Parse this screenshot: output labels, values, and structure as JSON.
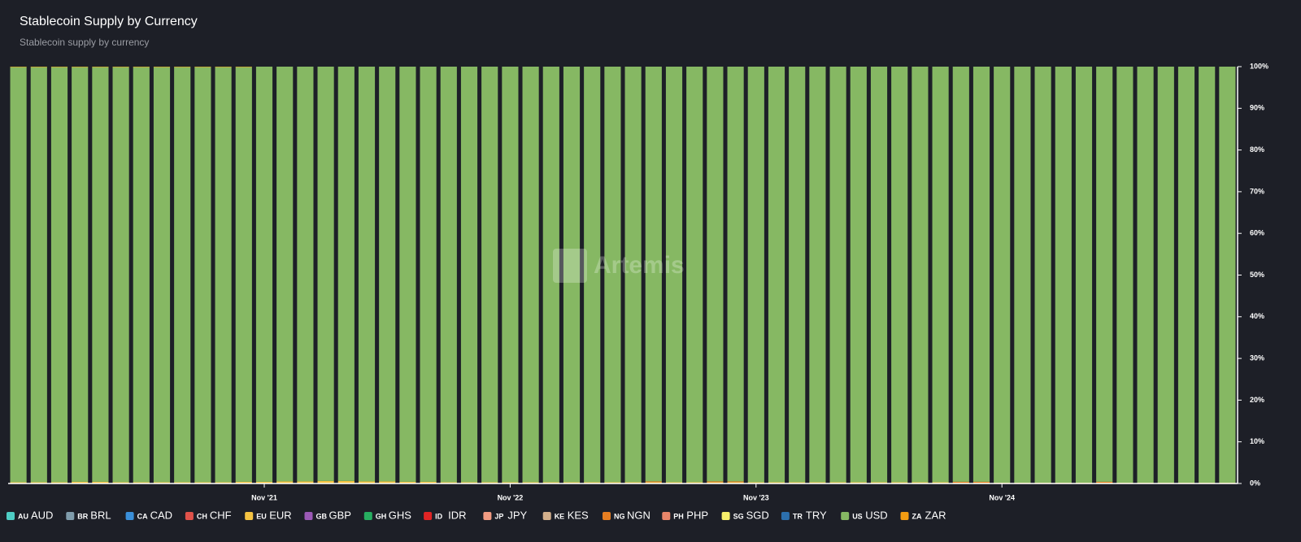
{
  "chart_data": {
    "type": "stacked_bar",
    "title": "Stablecoin Supply by Currency",
    "subtitle": "Stablecoin supply by currency",
    "watermark": "Artemis",
    "categories": [
      null,
      null,
      null,
      null,
      null,
      null,
      null,
      null,
      null,
      null,
      null,
      null,
      "Nov '21",
      null,
      null,
      null,
      null,
      null,
      null,
      null,
      null,
      null,
      null,
      null,
      "Nov '22",
      null,
      null,
      null,
      null,
      null,
      null,
      null,
      null,
      null,
      null,
      null,
      "Nov '23",
      null,
      null,
      null,
      null,
      null,
      null,
      null,
      null,
      null,
      null,
      null,
      "Nov '24",
      null,
      null,
      null,
      null,
      null,
      null,
      null,
      null,
      null,
      null,
      null
    ],
    "ylim": [
      0,
      100
    ],
    "yticks": [
      {
        "value": 0,
        "label": "0%"
      },
      {
        "value": 10,
        "label": "10%"
      },
      {
        "value": 20,
        "label": "20%"
      },
      {
        "value": 30,
        "label": "30%"
      },
      {
        "value": 40,
        "label": "40%"
      },
      {
        "value": 50,
        "label": "50%"
      },
      {
        "value": 60,
        "label": "60%"
      },
      {
        "value": 70,
        "label": "70%"
      },
      {
        "value": 80,
        "label": "80%"
      },
      {
        "value": 90,
        "label": "90%"
      },
      {
        "value": 100,
        "label": "100%"
      }
    ],
    "series": [
      {
        "name": "AUD",
        "flag": "AU",
        "color": "#4ecdc4",
        "values": [
          0,
          0,
          0,
          0,
          0,
          0,
          0,
          0,
          0,
          0,
          0,
          0,
          0,
          0,
          0,
          0,
          0,
          0,
          0,
          0,
          0,
          0,
          0,
          0,
          0,
          0,
          0,
          0,
          0,
          0,
          0,
          0,
          0,
          0,
          0,
          0,
          0,
          0,
          0,
          0,
          0,
          0,
          0,
          0,
          0,
          0,
          0,
          0,
          0,
          0,
          0,
          0,
          0,
          0,
          0,
          0,
          0,
          0,
          0,
          0
        ]
      },
      {
        "name": "BRL",
        "flag": "BR",
        "color": "#7f9cab",
        "values": [
          0,
          0,
          0,
          0,
          0,
          0,
          0,
          0,
          0,
          0,
          0,
          0,
          0,
          0,
          0,
          0,
          0,
          0,
          0,
          0,
          0,
          0,
          0,
          0,
          0,
          0,
          0,
          0,
          0,
          0,
          0,
          0,
          0,
          0,
          0,
          0,
          0,
          0,
          0,
          0,
          0,
          0,
          0,
          0,
          0,
          0,
          0,
          0,
          0,
          0,
          0,
          0,
          0,
          0,
          0,
          0,
          0,
          0,
          0,
          0
        ]
      },
      {
        "name": "CAD",
        "flag": "CA",
        "color": "#3a8fd9",
        "values": [
          0,
          0,
          0,
          0,
          0,
          0,
          0,
          0,
          0,
          0,
          0,
          0,
          0,
          0,
          0,
          0,
          0,
          0,
          0,
          0,
          0,
          0,
          0,
          0,
          0,
          0,
          0,
          0,
          0,
          0,
          0,
          0,
          0,
          0,
          0,
          0,
          0,
          0,
          0,
          0,
          0,
          0,
          0,
          0,
          0,
          0,
          0,
          0,
          0,
          0,
          0,
          0,
          0,
          0,
          0,
          0,
          0,
          0,
          0,
          0
        ]
      },
      {
        "name": "CHF",
        "flag": "CH",
        "color": "#e0524a",
        "values": [
          0,
          0,
          0,
          0,
          0,
          0,
          0,
          0,
          0,
          0,
          0,
          0,
          0,
          0,
          0,
          0,
          0,
          0,
          0,
          0,
          0,
          0,
          0,
          0,
          0,
          0,
          0,
          0,
          0,
          0,
          0,
          0,
          0,
          0,
          0,
          0,
          0,
          0,
          0,
          0,
          0,
          0,
          0,
          0,
          0,
          0,
          0,
          0,
          0,
          0,
          0,
          0,
          0,
          0,
          0,
          0,
          0,
          0,
          0,
          0
        ]
      },
      {
        "name": "EUR",
        "flag": "EU",
        "color": "#f5c342",
        "values": [
          0.3,
          0.3,
          0.3,
          0.4,
          0.4,
          0.3,
          0.3,
          0.3,
          0.3,
          0.3,
          0.3,
          0.4,
          0.4,
          0.5,
          0.5,
          0.6,
          0.6,
          0.5,
          0.5,
          0.4,
          0.4,
          0.3,
          0.3,
          0.3,
          0.3,
          0.3,
          0.3,
          0.3,
          0.3,
          0.3,
          0.3,
          0.3,
          0.3,
          0.3,
          0.3,
          0.3,
          0.3,
          0.3,
          0.3,
          0.3,
          0.3,
          0.3,
          0.3,
          0.3,
          0.3,
          0.3,
          0.2,
          0.2,
          0.2,
          0.2,
          0.2,
          0.2,
          0.2,
          0.2,
          0.2,
          0.2,
          0.2,
          0.2,
          0.2,
          0.2
        ]
      },
      {
        "name": "GBP",
        "flag": "GB",
        "color": "#9b59b6",
        "values": [
          0,
          0,
          0,
          0,
          0,
          0,
          0,
          0,
          0,
          0,
          0,
          0,
          0,
          0,
          0,
          0,
          0,
          0,
          0,
          0,
          0,
          0,
          0,
          0,
          0,
          0,
          0,
          0,
          0,
          0,
          0,
          0,
          0,
          0,
          0,
          0,
          0,
          0,
          0,
          0,
          0,
          0,
          0,
          0,
          0,
          0,
          0,
          0,
          0,
          0,
          0,
          0,
          0,
          0,
          0,
          0,
          0,
          0,
          0,
          0
        ]
      },
      {
        "name": "GHS",
        "flag": "GH",
        "color": "#27ae60",
        "values": [
          0,
          0,
          0,
          0,
          0,
          0,
          0,
          0,
          0,
          0,
          0,
          0,
          0,
          0,
          0,
          0,
          0,
          0,
          0,
          0,
          0,
          0,
          0,
          0,
          0,
          0,
          0,
          0,
          0,
          0,
          0,
          0,
          0,
          0,
          0,
          0,
          0,
          0,
          0,
          0,
          0,
          0,
          0,
          0,
          0,
          0,
          0,
          0,
          0,
          0,
          0,
          0,
          0,
          0,
          0,
          0,
          0,
          0,
          0,
          0
        ]
      },
      {
        "name": "IDR",
        "flag": "ID",
        "color": "#e02424",
        "values": [
          0,
          0,
          0,
          0,
          0,
          0,
          0,
          0,
          0,
          0,
          0,
          0,
          0,
          0,
          0,
          0,
          0,
          0,
          0,
          0,
          0,
          0,
          0,
          0,
          0,
          0,
          0,
          0,
          0,
          0,
          0,
          0,
          0,
          0,
          0,
          0,
          0,
          0,
          0,
          0,
          0,
          0,
          0,
          0,
          0,
          0,
          0,
          0,
          0,
          0,
          0,
          0,
          0,
          0,
          0,
          0,
          0,
          0,
          0,
          0
        ]
      },
      {
        "name": "JPY",
        "flag": "JP",
        "color": "#f29b82",
        "values": [
          0,
          0,
          0,
          0,
          0,
          0,
          0,
          0,
          0,
          0,
          0,
          0,
          0,
          0,
          0,
          0,
          0,
          0,
          0,
          0,
          0,
          0,
          0,
          0,
          0,
          0,
          0,
          0,
          0,
          0,
          0,
          0,
          0,
          0,
          0,
          0,
          0,
          0,
          0,
          0,
          0,
          0,
          0,
          0,
          0,
          0,
          0,
          0,
          0,
          0,
          0,
          0,
          0,
          0,
          0,
          0,
          0,
          0,
          0,
          0
        ]
      },
      {
        "name": "KES",
        "flag": "KE",
        "color": "#d4b08c",
        "values": [
          0,
          0,
          0,
          0,
          0,
          0,
          0,
          0,
          0,
          0,
          0,
          0,
          0,
          0,
          0,
          0,
          0,
          0,
          0,
          0,
          0,
          0,
          0,
          0,
          0,
          0,
          0,
          0,
          0,
          0,
          0,
          0,
          0,
          0,
          0,
          0,
          0,
          0,
          0,
          0,
          0,
          0,
          0,
          0,
          0,
          0,
          0,
          0,
          0,
          0,
          0,
          0,
          0,
          0,
          0,
          0,
          0,
          0,
          0,
          0
        ]
      },
      {
        "name": "NGN",
        "flag": "NG",
        "color": "#e67e22",
        "values": [
          0,
          0,
          0,
          0,
          0,
          0,
          0,
          0,
          0,
          0,
          0,
          0,
          0,
          0,
          0,
          0,
          0,
          0,
          0,
          0,
          0,
          0,
          0,
          0,
          0,
          0,
          0,
          0,
          0,
          0,
          0,
          0.2,
          0,
          0,
          0.2,
          0.2,
          0,
          0,
          0,
          0,
          0,
          0,
          0,
          0,
          0,
          0,
          0.2,
          0.2,
          0,
          0,
          0,
          0,
          0,
          0.2,
          0,
          0,
          0,
          0,
          0,
          0
        ]
      },
      {
        "name": "PHP",
        "flag": "PH",
        "color": "#e8856a",
        "values": [
          0,
          0,
          0,
          0,
          0,
          0,
          0,
          0,
          0,
          0,
          0,
          0,
          0,
          0,
          0,
          0,
          0,
          0,
          0,
          0,
          0,
          0,
          0,
          0,
          0,
          0,
          0,
          0,
          0,
          0,
          0,
          0,
          0,
          0,
          0,
          0,
          0,
          0,
          0,
          0,
          0,
          0,
          0,
          0,
          0,
          0,
          0,
          0,
          0,
          0,
          0,
          0,
          0,
          0,
          0,
          0,
          0,
          0,
          0,
          0
        ]
      },
      {
        "name": "SGD",
        "flag": "SG",
        "color": "#f7f06b",
        "values": [
          0,
          0,
          0,
          0,
          0,
          0,
          0,
          0,
          0,
          0,
          0,
          0,
          0,
          0,
          0,
          0,
          0,
          0,
          0,
          0,
          0,
          0,
          0,
          0,
          0,
          0,
          0,
          0,
          0,
          0,
          0,
          0,
          0,
          0,
          0,
          0,
          0,
          0,
          0,
          0,
          0,
          0,
          0,
          0,
          0,
          0,
          0,
          0,
          0,
          0,
          0,
          0,
          0,
          0,
          0,
          0,
          0,
          0,
          0,
          0
        ]
      },
      {
        "name": "TRY",
        "flag": "TR",
        "color": "#2c6fad",
        "values": [
          0,
          0,
          0,
          0,
          0,
          0,
          0,
          0,
          0,
          0,
          0,
          0,
          0,
          0,
          0,
          0,
          0,
          0,
          0,
          0,
          0,
          0,
          0,
          0,
          0,
          0,
          0,
          0,
          0,
          0,
          0,
          0,
          0,
          0,
          0,
          0,
          0,
          0,
          0,
          0,
          0,
          0,
          0,
          0,
          0,
          0,
          0,
          0,
          0,
          0,
          0,
          0,
          0,
          0,
          0,
          0,
          0,
          0,
          0,
          0
        ]
      },
      {
        "name": "USD",
        "flag": "US",
        "color": "#86b863",
        "values": [
          99.6,
          99.6,
          99.6,
          99.5,
          99.5,
          99.6,
          99.6,
          99.6,
          99.6,
          99.6,
          99.6,
          99.5,
          99.6,
          99.5,
          99.5,
          99.4,
          99.4,
          99.5,
          99.5,
          99.6,
          99.6,
          99.7,
          99.7,
          99.7,
          99.7,
          99.7,
          99.7,
          99.7,
          99.7,
          99.7,
          99.7,
          99.5,
          99.7,
          99.7,
          99.5,
          99.5,
          99.7,
          99.7,
          99.7,
          99.7,
          99.7,
          99.7,
          99.7,
          99.7,
          99.7,
          99.7,
          99.6,
          99.6,
          99.8,
          99.8,
          99.8,
          99.8,
          99.8,
          99.6,
          99.8,
          99.8,
          99.8,
          99.8,
          99.8,
          99.8
        ]
      },
      {
        "name": "ZAR",
        "flag": "ZA",
        "color": "#f39c12",
        "values": [
          0.1,
          0.1,
          0.1,
          0.1,
          0.1,
          0.1,
          0.1,
          0.1,
          0.1,
          0.1,
          0.1,
          0.1,
          0,
          0,
          0,
          0,
          0,
          0,
          0,
          0,
          0,
          0,
          0,
          0,
          0,
          0,
          0,
          0,
          0,
          0,
          0,
          0,
          0,
          0,
          0,
          0,
          0,
          0,
          0,
          0,
          0,
          0,
          0,
          0,
          0,
          0,
          0,
          0,
          0,
          0,
          0,
          0,
          0,
          0,
          0,
          0,
          0,
          0,
          0,
          0
        ]
      }
    ]
  }
}
